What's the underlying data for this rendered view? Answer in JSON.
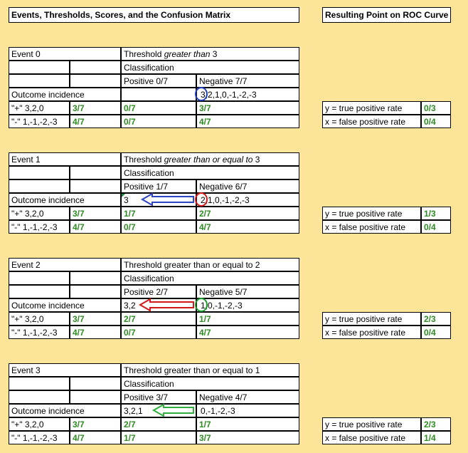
{
  "header": {
    "title": "Events, Thresholds, Scores, and the Confusion Matrix",
    "roc_title": "Resulting Point on ROC Curve"
  },
  "events": [
    {
      "event": "Event 0",
      "threshold_pre": "Threshold ",
      "threshold_em": "greater than",
      "threshold_post": " 3",
      "classification": "Classification",
      "positive_head": "Positive 0/7",
      "negative_head": "Negative 7/7",
      "outcome_label": "Outcome incidence",
      "positive_scores": "",
      "negative_scores": "3,2,1,0,-1,-2,-3",
      "plus_label": "\"+\"  3,2,0",
      "plus_total": "3/7",
      "plus_pos": "0/7",
      "plus_neg": "3/7",
      "minus_label": "\"-\" 1,-1,-2,-3",
      "minus_total": "4/7",
      "minus_pos": "0/7",
      "minus_neg": "4/7",
      "tpr_label": "y = true positive rate",
      "tpr": "0/3",
      "fpr_label": "x = false positive rate",
      "fpr": "0/4"
    },
    {
      "event": "Event 1",
      "threshold_pre": "Threshold ",
      "threshold_em": "greater than or equal to",
      "threshold_post": " 3",
      "classification": "Classification",
      "positive_head": "Positive 1/7",
      "negative_head": "Negative 6/7",
      "outcome_label": "Outcome incidence",
      "positive_scores": "3",
      "negative_scores": "2,1,0,-1,-2,-3",
      "plus_label": "\"+\"  3,2,0",
      "plus_total": "3/7",
      "plus_pos": "1/7",
      "plus_neg": "2/7",
      "minus_label": "\"-\" 1,-1,-2,-3",
      "minus_total": "4/7",
      "minus_pos": "0/7",
      "minus_neg": "4/7",
      "tpr_label": "y = true positive rate",
      "tpr": "1/3",
      "fpr_label": "x = false positive rate",
      "fpr": "0/4"
    },
    {
      "event": "Event 2",
      "threshold_pre": "Threshold greater than or equal to 2",
      "threshold_em": "",
      "threshold_post": "",
      "classification": "Classification",
      "positive_head": "Positive 2/7",
      "negative_head": "Negative 5/7",
      "outcome_label": "Outcome incidence",
      "positive_scores": "3,2",
      "negative_scores": "1,0,-1,-2,-3",
      "plus_label": "\"+\"  3,2,0",
      "plus_total": "3/7",
      "plus_pos": "2/7",
      "plus_neg": "1/7",
      "minus_label": "\"-\" 1,-1,-2,-3",
      "minus_total": "4/7",
      "minus_pos": "0/7",
      "minus_neg": "4/7",
      "tpr_label": "y = true positive rate",
      "tpr": "2/3",
      "fpr_label": "x = false positive rate",
      "fpr": "0/4"
    },
    {
      "event": "Event 3",
      "threshold_pre": "Threshold greater than or equal to 1",
      "threshold_em": "",
      "threshold_post": "",
      "classification": "Classification",
      "positive_head": "Positive 3/7",
      "negative_head": "Negative 4/7",
      "outcome_label": "Outcome incidence",
      "positive_scores": "3,2,1",
      "negative_scores": "0,-1,-2,-3",
      "plus_label": "\"+\"  3,2,0",
      "plus_total": "3/7",
      "plus_pos": "2/7",
      "plus_neg": "1/7",
      "minus_label": "\"-\" 1,-1,-2,-3",
      "minus_total": "4/7",
      "minus_pos": "1/7",
      "minus_neg": "3/7",
      "tpr_label": "y = true positive rate",
      "tpr": "2/3",
      "fpr_label": "x = false positive rate",
      "fpr": "1/4"
    }
  ],
  "colors": {
    "background": "#fce598",
    "value_green": "#2e8b22",
    "circle_event0": "#1f3fbf",
    "circle_event1": "#d11a1a",
    "circle_event2": "#1c9a2c",
    "arrow_event1": "#2b44c8",
    "arrow_event2": "#d11a1a",
    "arrow_event3": "#2fae3b"
  }
}
